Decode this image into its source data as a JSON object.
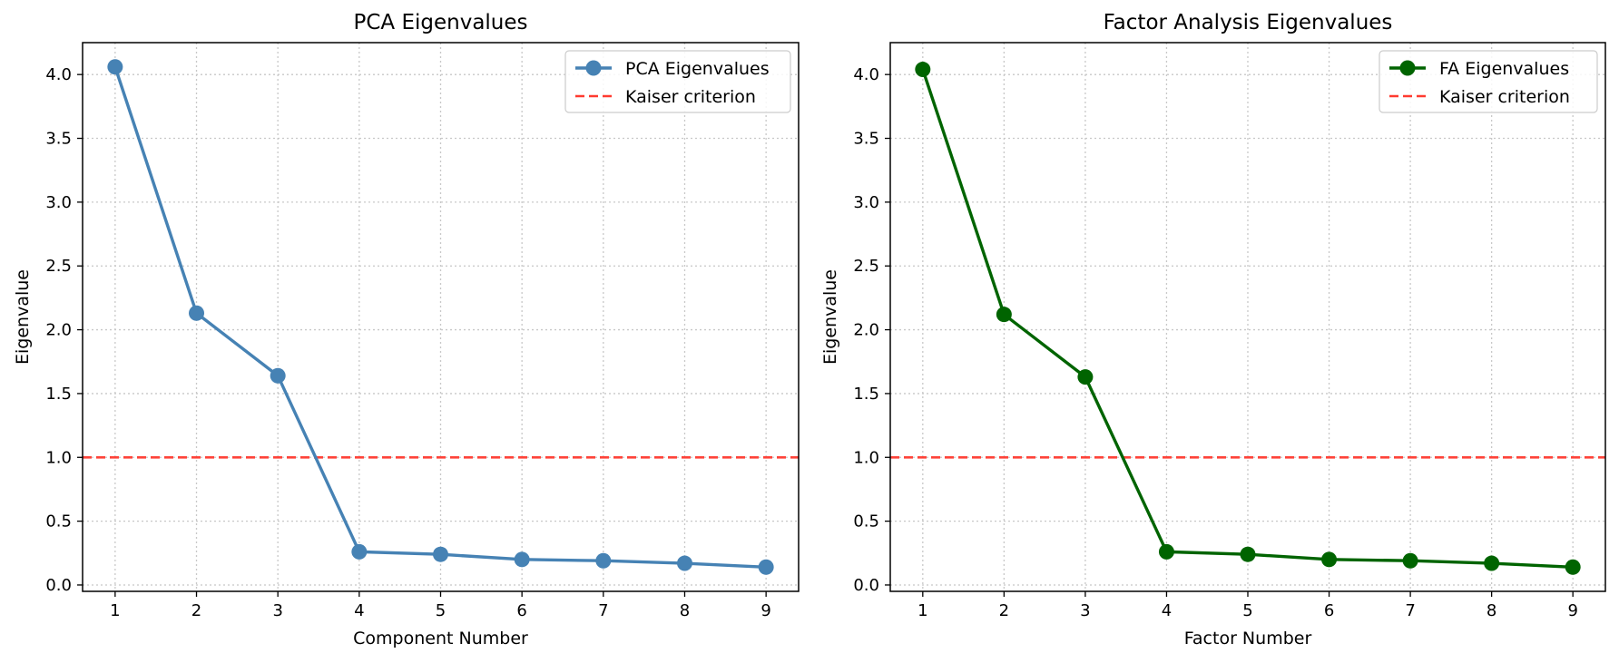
{
  "chart_data": [
    {
      "type": "line",
      "title": "PCA Eigenvalues",
      "xlabel": "Component Number",
      "ylabel": "Eigenvalue",
      "x": [
        1,
        2,
        3,
        4,
        5,
        6,
        7,
        8,
        9
      ],
      "x_ticks": [
        "1",
        "2",
        "3",
        "4",
        "5",
        "6",
        "7",
        "8",
        "9"
      ],
      "y_ticks": [
        "0.0",
        "0.5",
        "1.0",
        "1.5",
        "2.0",
        "2.5",
        "3.0",
        "3.5",
        "4.0"
      ],
      "xlim": [
        0.6,
        9.4
      ],
      "ylim": [
        -0.05,
        4.25
      ],
      "grid": true,
      "legend_position": "top-right",
      "series": [
        {
          "name": "PCA Eigenvalues",
          "color": "#4682b4",
          "marker": "circle",
          "values": [
            4.06,
            2.13,
            1.64,
            0.26,
            0.24,
            0.2,
            0.19,
            0.17,
            0.14
          ]
        }
      ],
      "reference_lines": [
        {
          "name": "Kaiser criterion",
          "y": 1.0,
          "color": "#ff3b30",
          "style": "dashed"
        }
      ]
    },
    {
      "type": "line",
      "title": "Factor Analysis Eigenvalues",
      "xlabel": "Factor Number",
      "ylabel": "Eigenvalue",
      "x": [
        1,
        2,
        3,
        4,
        5,
        6,
        7,
        8,
        9
      ],
      "x_ticks": [
        "1",
        "2",
        "3",
        "4",
        "5",
        "6",
        "7",
        "8",
        "9"
      ],
      "y_ticks": [
        "0.0",
        "0.5",
        "1.0",
        "1.5",
        "2.0",
        "2.5",
        "3.0",
        "3.5",
        "4.0"
      ],
      "xlim": [
        0.6,
        9.4
      ],
      "ylim": [
        -0.05,
        4.25
      ],
      "grid": true,
      "legend_position": "top-right",
      "series": [
        {
          "name": "FA Eigenvalues",
          "color": "#006400",
          "marker": "circle",
          "values": [
            4.04,
            2.12,
            1.63,
            0.26,
            0.24,
            0.2,
            0.19,
            0.17,
            0.14
          ]
        }
      ],
      "reference_lines": [
        {
          "name": "Kaiser criterion",
          "y": 1.0,
          "color": "#ff3b30",
          "style": "dashed"
        }
      ]
    }
  ]
}
